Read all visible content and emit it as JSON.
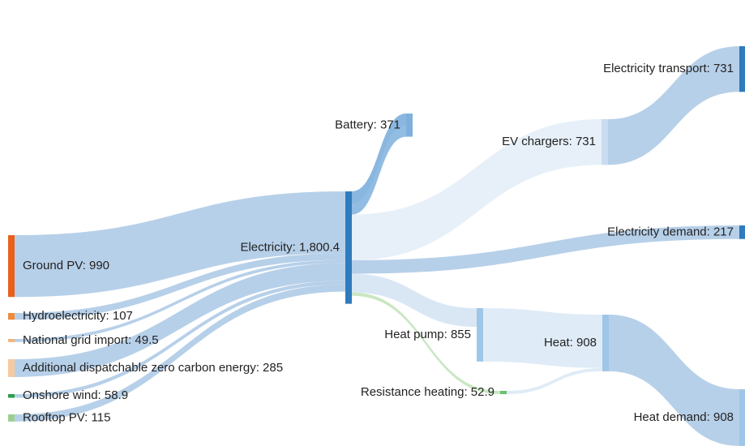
{
  "chart_data": {
    "type": "sankey",
    "nodes": [
      {
        "label": "Ground PV: 990",
        "value": 990,
        "color": "#e8601c"
      },
      {
        "label": "Hydroelectricity: 107",
        "value": 107,
        "color": "#f08a3c"
      },
      {
        "label": "National grid import: 49.5",
        "value": 49.5,
        "color": "#f6b27a"
      },
      {
        "label": "Additional dispatchable zero carbon energy: 285",
        "value": 285,
        "color": "#f7c9a0"
      },
      {
        "label": "Onshore wind: 58.9",
        "value": 58.9,
        "color": "#2e9e4f"
      },
      {
        "label": "Rooftop PV: 115",
        "value": 115,
        "color": "#9ccf8f"
      },
      {
        "label": "Electricity: 1,800.4",
        "value": 1800.4,
        "color": "#2f7bbd"
      },
      {
        "label": "Battery: 371",
        "value": 371,
        "color": "#7fb0dd"
      },
      {
        "label": "EV chargers: 731",
        "value": 731,
        "color": "#c9dcf0"
      },
      {
        "label": "Electricity demand: 217",
        "value": 217,
        "color": "#2f7bbd"
      },
      {
        "label": "Heat pump: 855",
        "value": 855,
        "color": "#9fc6e6"
      },
      {
        "label": "Resistance heating: 52.9",
        "value": 52.9,
        "color": "#6cc070"
      },
      {
        "label": "Heat: 908",
        "value": 908,
        "color": "#9fc6e6"
      },
      {
        "label": "Electricity transport: 731",
        "value": 731,
        "color": "#2f7bbd"
      },
      {
        "label": "Heat demand: 908",
        "value": 908,
        "color": "#9fc6e6"
      }
    ],
    "links": [
      {
        "source": 0,
        "target": 6,
        "value": 990,
        "color": "#aac8e5"
      },
      {
        "source": 1,
        "target": 6,
        "value": 107,
        "color": "#aac8e5"
      },
      {
        "source": 2,
        "target": 6,
        "value": 49.5,
        "color": "#aac8e5"
      },
      {
        "source": 3,
        "target": 6,
        "value": 285,
        "color": "#aac8e5"
      },
      {
        "source": 4,
        "target": 6,
        "value": 58.9,
        "color": "#aac8e5"
      },
      {
        "source": 5,
        "target": 6,
        "value": 115,
        "color": "#aac8e5"
      },
      {
        "source": 7,
        "target": 6,
        "value": 195,
        "color": "#c0d8ee"
      },
      {
        "source": 6,
        "target": 7,
        "value": 371,
        "color": "#7fb0dd"
      },
      {
        "source": 6,
        "target": 8,
        "value": 731,
        "color": "#e3edf8"
      },
      {
        "source": 6,
        "target": 9,
        "value": 217,
        "color": "#aac8e5"
      },
      {
        "source": 6,
        "target": 10,
        "value": 300,
        "color": "#d2e3f3"
      },
      {
        "source": 6,
        "target": 11,
        "value": 52.9,
        "color": "#bfe3b8"
      },
      {
        "source": 8,
        "target": 13,
        "value": 731,
        "color": "#aac8e5"
      },
      {
        "source": 10,
        "target": 12,
        "value": 855,
        "color": "#d9e8f5"
      },
      {
        "source": 11,
        "target": 12,
        "value": 52.9,
        "color": "#d9e8f5"
      },
      {
        "source": 12,
        "target": 14,
        "value": 908,
        "color": "#aac8e5"
      }
    ]
  }
}
